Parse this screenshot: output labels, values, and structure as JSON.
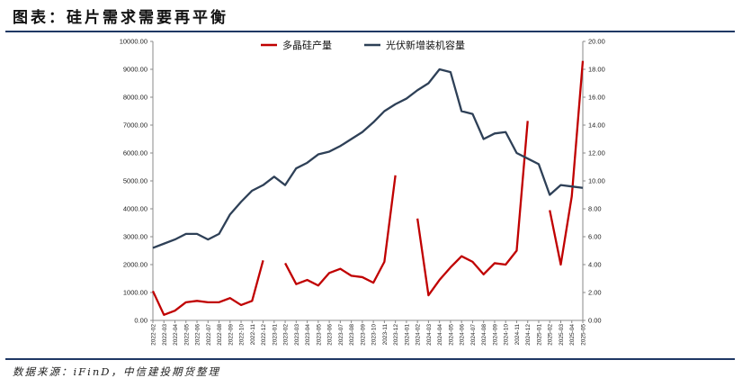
{
  "header": {
    "title": "图表：硅片需求需要再平衡"
  },
  "footer": {
    "source": "数据来源：iFinD，中信建投期货整理"
  },
  "colors": {
    "series1": "#c00000",
    "series2": "#2e4057",
    "rule": "#1f3864"
  },
  "chart_data": {
    "type": "line",
    "title": "",
    "legend_position": "top-center",
    "grid": false,
    "x": [
      "2022-02",
      "2022-03",
      "2022-04",
      "2022-05",
      "2022-06",
      "2022-07",
      "2022-08",
      "2022-09",
      "2022-10",
      "2022-11",
      "2022-12",
      "2023-01",
      "2023-02",
      "2023-03",
      "2023-04",
      "2023-05",
      "2023-06",
      "2023-07",
      "2023-08",
      "2023-09",
      "2023-10",
      "2023-11",
      "2023-12",
      "2024-01",
      "2024-02",
      "2024-03",
      "2024-04",
      "2024-05",
      "2024-06",
      "2024-07",
      "2024-08",
      "2024-09",
      "2024-10",
      "2024-11",
      "2024-12",
      "2025-01",
      "2025-02",
      "2025-03",
      "2025-04",
      "2025-05"
    ],
    "y_left": {
      "min": 0,
      "max": 10000,
      "ticks": [
        "0.00",
        "1000.00",
        "2000.00",
        "3000.00",
        "4000.00",
        "5000.00",
        "6000.00",
        "7000.00",
        "8000.00",
        "9000.00",
        "10000.00"
      ]
    },
    "y_right": {
      "min": 0,
      "max": 20,
      "ticks": [
        "0.00",
        "2.00",
        "4.00",
        "6.00",
        "8.00",
        "10.00",
        "12.00",
        "14.00",
        "16.00",
        "18.00",
        "20.00"
      ]
    },
    "series": [
      {
        "name": "多晶硅产量",
        "axis": "left",
        "color": "#c00000",
        "values": [
          1050,
          200,
          350,
          650,
          700,
          650,
          650,
          800,
          550,
          700,
          2150,
          null,
          2050,
          1300,
          1450,
          1250,
          1700,
          1850,
          1600,
          1550,
          1350,
          2100,
          5200,
          null,
          3650,
          900,
          1450,
          1900,
          2300,
          2100,
          1650,
          2050,
          2000,
          2500,
          7150,
          null,
          3950,
          2000,
          4450,
          9300
        ]
      },
      {
        "name": "光伏新增装机容量",
        "axis": "right",
        "color": "#2e4057",
        "values": [
          5.2,
          5.5,
          5.8,
          6.2,
          6.2,
          5.8,
          6.2,
          7.6,
          8.5,
          9.3,
          9.7,
          10.3,
          9.7,
          10.9,
          11.3,
          11.9,
          12.1,
          12.5,
          13.0,
          13.5,
          14.2,
          15.0,
          15.5,
          15.9,
          16.5,
          17.0,
          18.0,
          17.8,
          15.0,
          14.8,
          13.0,
          13.4,
          13.5,
          12.0,
          11.6,
          11.2,
          9.0,
          9.7,
          9.6,
          9.5
        ]
      }
    ]
  }
}
